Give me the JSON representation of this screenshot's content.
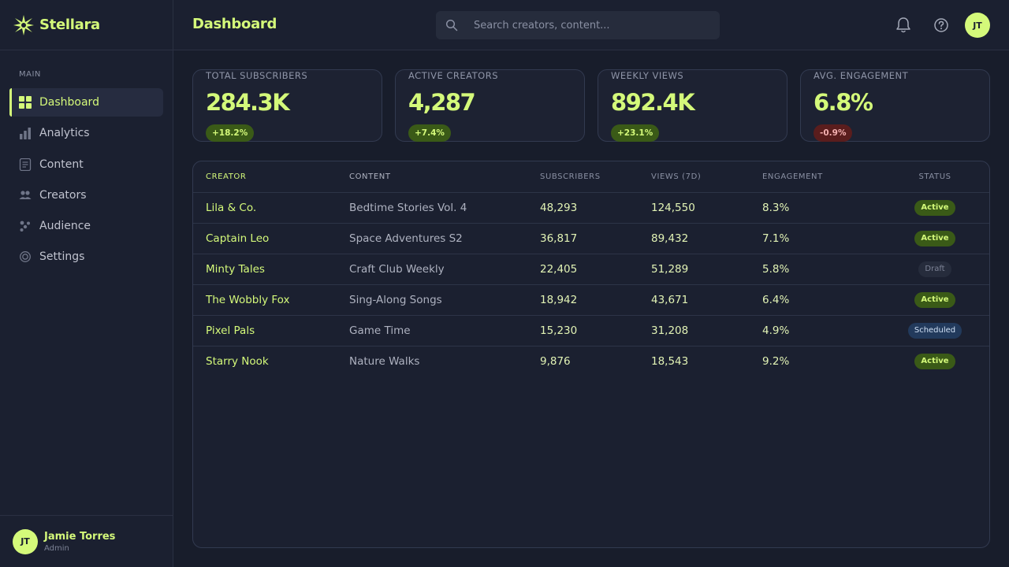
{
  "brand": {
    "name": "Stellara",
    "accent": "#d4f97a"
  },
  "sidebar": {
    "section_label": "MAIN",
    "items": [
      {
        "label": "Dashboard",
        "icon": "grid-icon",
        "active": true
      },
      {
        "label": "Analytics",
        "icon": "bar-chart-icon"
      },
      {
        "label": "Content",
        "icon": "document-icon"
      },
      {
        "label": "Creators",
        "icon": "people-icon"
      },
      {
        "label": "Audience",
        "icon": "dots-cluster-icon"
      },
      {
        "label": "Settings",
        "icon": "target-icon"
      }
    ]
  },
  "user": {
    "initials": "JT",
    "name": "Jamie Torres",
    "role": "Admin"
  },
  "header": {
    "title": "Dashboard",
    "search_placeholder": "Search creators, content...",
    "avatar_initials": "JT"
  },
  "stats": [
    {
      "label": "TOTAL SUBSCRIBERS",
      "value": "284.3K",
      "change": "+18.2%",
      "trend": "up"
    },
    {
      "label": "ACTIVE CREATORS",
      "value": "4,287",
      "change": "+7.4%",
      "trend": "up"
    },
    {
      "label": "WEEKLY VIEWS",
      "value": "892.4K",
      "change": "+23.1%",
      "trend": "up"
    },
    {
      "label": "AVG. ENGAGEMENT",
      "value": "6.8%",
      "change": "-0.9%",
      "trend": "down"
    }
  ],
  "table": {
    "columns": [
      "CREATOR",
      "CONTENT",
      "SUBSCRIBERS",
      "VIEWS (7D)",
      "ENGAGEMENT",
      "STATUS"
    ],
    "rows": [
      {
        "creator": "Lila & Co.",
        "content": "Bedtime Stories Vol. 4",
        "subscribers": "48,293",
        "views": "124,550",
        "engagement": "8.3%",
        "status": "Active"
      },
      {
        "creator": "Captain Leo",
        "content": "Space Adventures S2",
        "subscribers": "36,817",
        "views": "89,432",
        "engagement": "7.1%",
        "status": "Active"
      },
      {
        "creator": "Minty Tales",
        "content": "Craft Club Weekly",
        "subscribers": "22,405",
        "views": "51,289",
        "engagement": "5.8%",
        "status": "Draft"
      },
      {
        "creator": "The Wobbly Fox",
        "content": "Sing-Along Songs",
        "subscribers": "18,942",
        "views": "43,671",
        "engagement": "6.4%",
        "status": "Active"
      },
      {
        "creator": "Pixel Pals",
        "content": "Game Time",
        "subscribers": "15,230",
        "views": "31,208",
        "engagement": "4.9%",
        "status": "Scheduled"
      },
      {
        "creator": "Starry Nook",
        "content": "Nature Walks",
        "subscribers": "9,876",
        "views": "18,543",
        "engagement": "9.2%",
        "status": "Active"
      }
    ]
  }
}
